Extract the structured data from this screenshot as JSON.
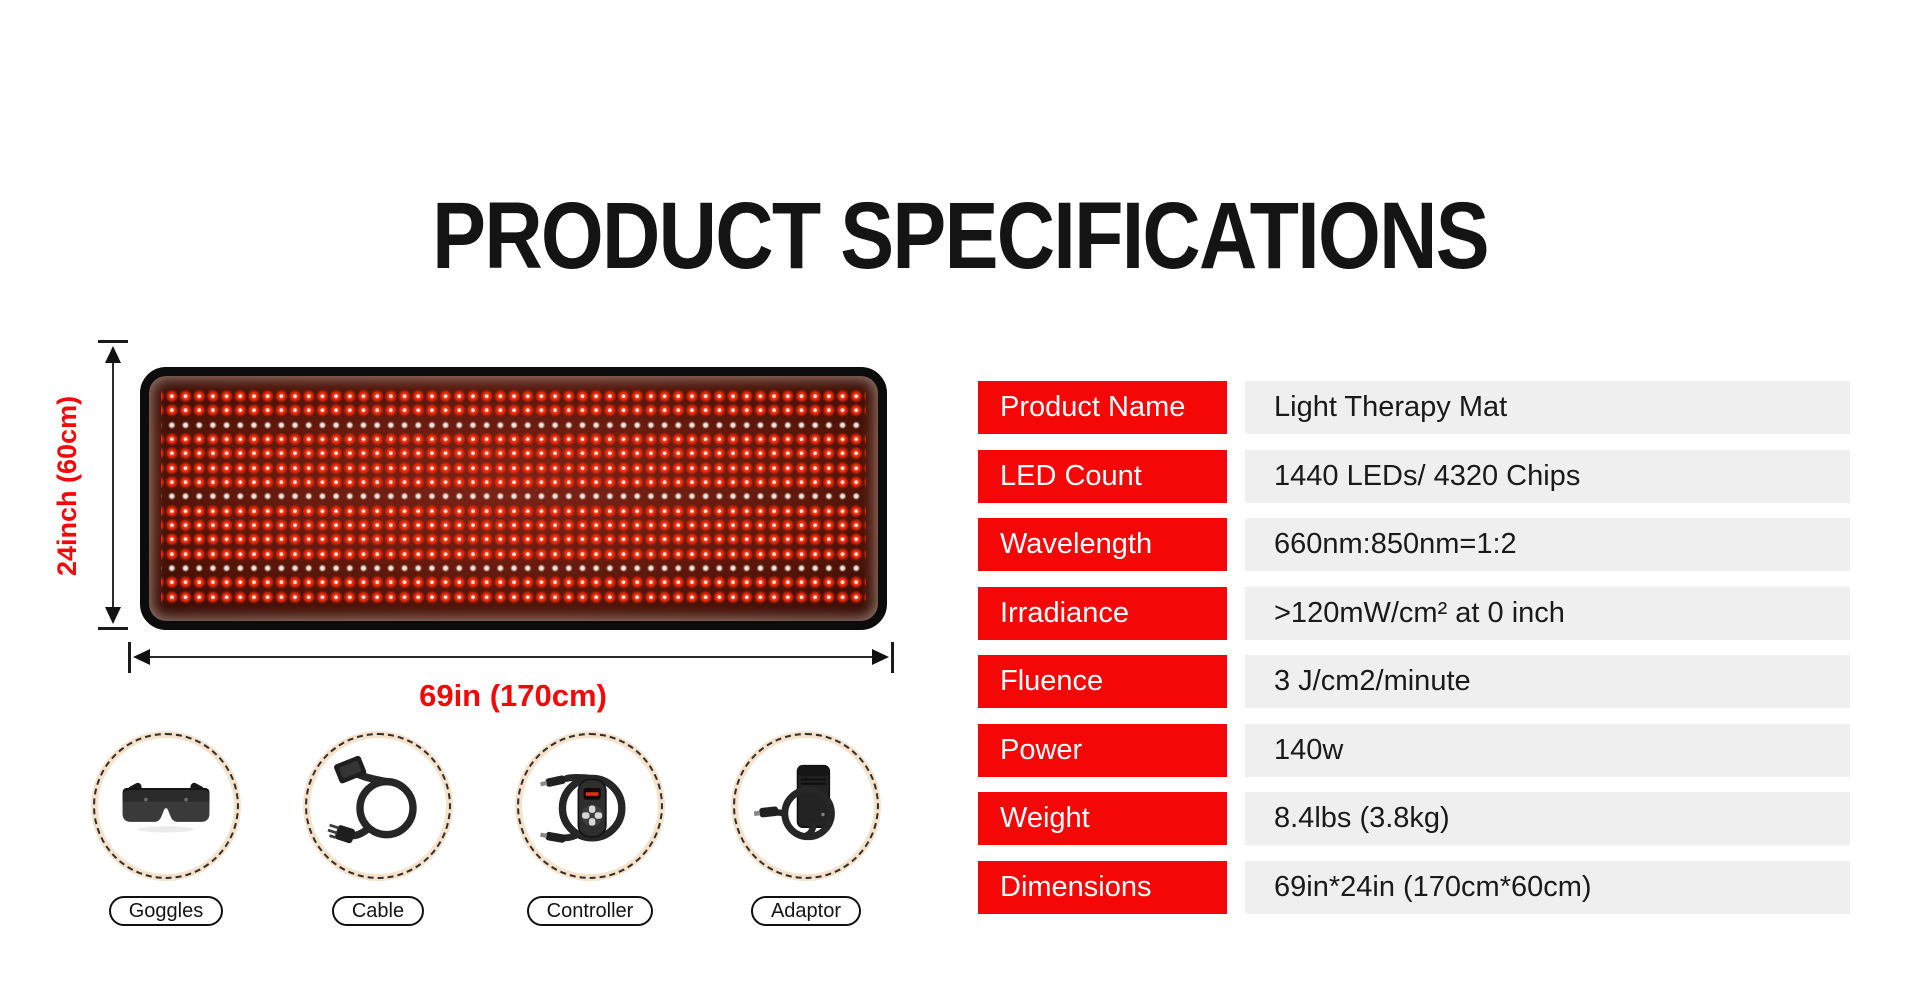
{
  "title": "PRODUCT SPECIFICATIONS",
  "colors": {
    "accent_red": "#f50707",
    "dimension_text_red": "#f40808",
    "value_cell_gray": "#efefef",
    "ring_tan": "#f6e2ca",
    "mat_border_black": "#0c0c0c"
  },
  "mat": {
    "height_label": "24inch (60cm)",
    "width_label": "69in (170cm)",
    "led_rows": [
      "red",
      "red",
      "white",
      "red",
      "red",
      "red",
      "red",
      "white",
      "red",
      "red",
      "red",
      "red",
      "white",
      "red",
      "red"
    ]
  },
  "accessories": [
    {
      "name": "Goggles",
      "icon": "goggles-icon"
    },
    {
      "name": "Cable",
      "icon": "cable-icon"
    },
    {
      "name": "Controller",
      "icon": "controller-icon"
    },
    {
      "name": "Adaptor",
      "icon": "adaptor-icon"
    }
  ],
  "specs": {
    "rows": [
      {
        "label": "Product Name",
        "value": "Light Therapy Mat"
      },
      {
        "label": "LED Count",
        "value": "1440 LEDs/ 4320 Chips"
      },
      {
        "label": "Wavelength",
        "value": "660nm:850nm=1:2"
      },
      {
        "label": "Irradiance",
        "value": ">120mW/cm² at 0 inch"
      },
      {
        "label": "Fluence",
        "value": "3 J/cm2/minute"
      },
      {
        "label": "Power",
        "value": "140w"
      },
      {
        "label": "Weight",
        "value": "8.4lbs (3.8kg)"
      },
      {
        "label": "Dimensions",
        "value": "69in*24in (170cm*60cm)"
      }
    ]
  }
}
